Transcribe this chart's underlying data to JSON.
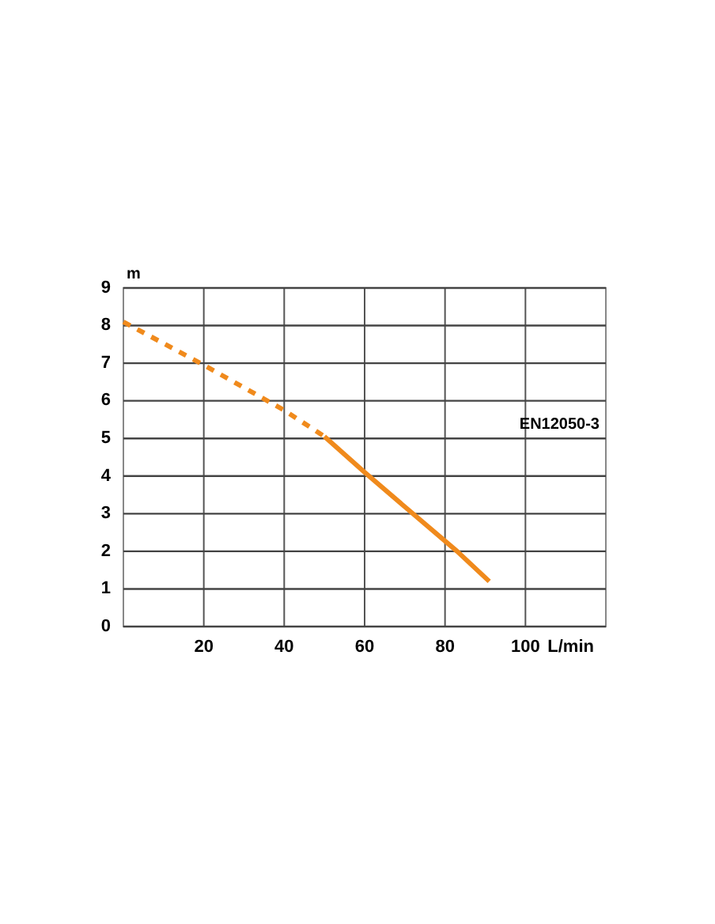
{
  "chart_data": {
    "type": "line",
    "xlabel": "L/min",
    "ylabel": "m",
    "xlim": [
      0,
      120
    ],
    "ylim": [
      0,
      9
    ],
    "xticks": [
      20,
      40,
      60,
      80,
      100
    ],
    "yticks": [
      0,
      1,
      2,
      3,
      4,
      5,
      6,
      7,
      8,
      9
    ],
    "grid": true,
    "annotations": [
      "EN12050-3"
    ],
    "series": [
      {
        "color": "#f08a1c",
        "line_style": "dashed",
        "x": [
          0,
          20,
          35,
          40,
          50
        ],
        "values": [
          8.1,
          6.95,
          6.05,
          5.75,
          5.05
        ]
      },
      {
        "color": "#f08a1c",
        "line_style": "solid",
        "x": [
          50,
          60,
          72,
          83,
          91
        ],
        "values": [
          5.05,
          4.1,
          3,
          2,
          1.2
        ]
      }
    ]
  }
}
